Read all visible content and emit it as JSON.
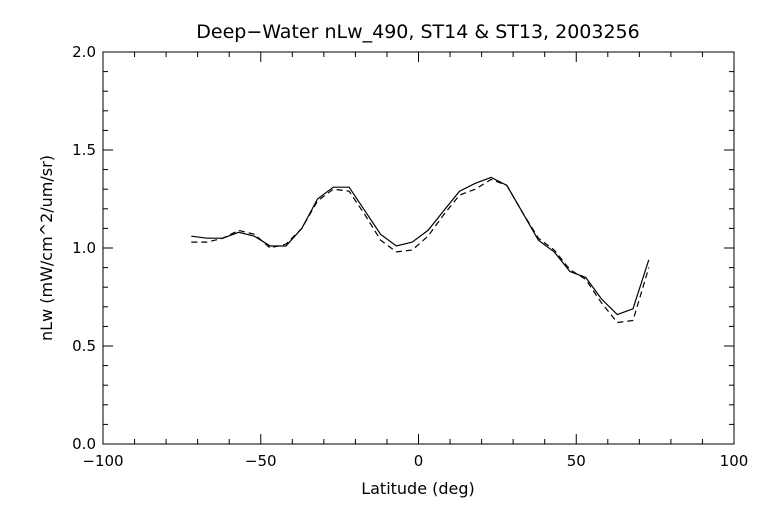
{
  "chart_data": {
    "type": "line",
    "title": "Deep−Water nLw_490, ST14 & ST13, 2003256",
    "xlabel": "Latitude (deg)",
    "ylabel": "nLw (mW/cm^2/um/sr)",
    "xlim": [
      -100,
      100
    ],
    "ylim": [
      0.0,
      2.0
    ],
    "x_ticks": [
      -100,
      -50,
      0,
      50,
      100
    ],
    "x_tick_labels": [
      "−100",
      "−50",
      "0",
      "50",
      "100"
    ],
    "y_ticks": [
      0.0,
      0.5,
      1.0,
      1.5,
      2.0
    ],
    "y_tick_labels": [
      "0.0",
      "0.5",
      "1.0",
      "1.5",
      "2.0"
    ],
    "x_minor_step": 10,
    "y_minor_step": 0.1,
    "grid": false,
    "legend": false,
    "series": [
      {
        "style": "solid",
        "color": "#000000",
        "points": [
          [
            -72,
            1.06
          ],
          [
            -67,
            1.05
          ],
          [
            -62,
            1.05
          ],
          [
            -57,
            1.08
          ],
          [
            -52,
            1.06
          ],
          [
            -47,
            1.01
          ],
          [
            -42,
            1.01
          ],
          [
            -37,
            1.1
          ],
          [
            -32,
            1.25
          ],
          [
            -27,
            1.31
          ],
          [
            -22,
            1.31
          ],
          [
            -17,
            1.19
          ],
          [
            -12,
            1.07
          ],
          [
            -7,
            1.01
          ],
          [
            -2,
            1.03
          ],
          [
            3,
            1.09
          ],
          [
            8,
            1.19
          ],
          [
            13,
            1.29
          ],
          [
            18,
            1.33
          ],
          [
            23,
            1.36
          ],
          [
            28,
            1.32
          ],
          [
            33,
            1.18
          ],
          [
            38,
            1.04
          ],
          [
            43,
            0.98
          ],
          [
            48,
            0.88
          ],
          [
            53,
            0.85
          ],
          [
            58,
            0.74
          ],
          [
            63,
            0.66
          ],
          [
            68,
            0.69
          ],
          [
            73,
            0.94
          ]
        ]
      },
      {
        "style": "dashed",
        "color": "#000000",
        "points": [
          [
            -72,
            1.03
          ],
          [
            -67,
            1.03
          ],
          [
            -62,
            1.05
          ],
          [
            -57,
            1.09
          ],
          [
            -52,
            1.07
          ],
          [
            -47,
            1.0
          ],
          [
            -42,
            1.02
          ],
          [
            -37,
            1.1
          ],
          [
            -32,
            1.24
          ],
          [
            -27,
            1.3
          ],
          [
            -22,
            1.29
          ],
          [
            -17,
            1.17
          ],
          [
            -12,
            1.04
          ],
          [
            -7,
            0.98
          ],
          [
            -2,
            0.99
          ],
          [
            3,
            1.06
          ],
          [
            8,
            1.17
          ],
          [
            13,
            1.27
          ],
          [
            18,
            1.3
          ],
          [
            23,
            1.35
          ],
          [
            28,
            1.32
          ],
          [
            33,
            1.18
          ],
          [
            38,
            1.05
          ],
          [
            43,
            0.99
          ],
          [
            48,
            0.89
          ],
          [
            53,
            0.84
          ],
          [
            58,
            0.72
          ],
          [
            63,
            0.62
          ],
          [
            68,
            0.63
          ],
          [
            73,
            0.9
          ]
        ]
      }
    ]
  }
}
